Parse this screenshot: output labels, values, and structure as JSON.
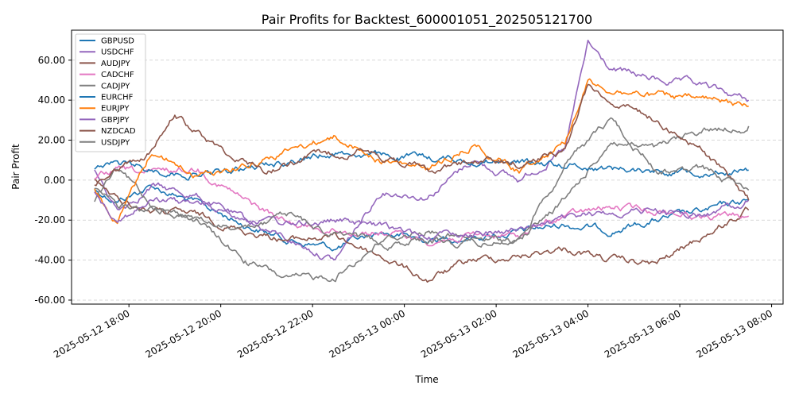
{
  "chart_data": {
    "type": "line",
    "title": "Pair Profits for Backtest_600001051_202505121700",
    "xlabel": "Time",
    "ylabel": "Pair Profit",
    "x_range": [
      "2025-05-12 16:45",
      "2025-05-13 08:15"
    ],
    "ylim": [
      -62,
      75
    ],
    "y_ticks": [
      -60,
      -40,
      -20,
      0,
      20,
      40,
      60
    ],
    "y_tick_labels": [
      "-60.00",
      "-40.00",
      "-20.00",
      "0.00",
      "20.00",
      "40.00",
      "60.00"
    ],
    "x_ticks": [
      "2025-05-12 18:00",
      "2025-05-12 20:00",
      "2025-05-12 22:00",
      "2025-05-13 00:00",
      "2025-05-13 02:00",
      "2025-05-13 04:00",
      "2025-05-13 06:00",
      "2025-05-13 08:00"
    ],
    "x_tick_labels": [
      "2025-05-12 18:00",
      "2025-05-12 20:00",
      "2025-05-12 22:00",
      "2025-05-13 00:00",
      "2025-05-13 02:00",
      "2025-05-13 04:00",
      "2025-05-13 06:00",
      "2025-05-13 08:00"
    ],
    "grid": "y-dashed",
    "legend_position": "top-left",
    "series": [
      {
        "name": "GBPUSD",
        "color": "#1f77b4",
        "x": [
          "2025-05-12 17:15",
          "2025-05-12 17:45",
          "2025-05-12 18:30",
          "2025-05-12 19:30",
          "2025-05-12 20:30",
          "2025-05-12 21:30",
          "2025-05-12 22:30",
          "2025-05-12 23:30",
          "2025-05-13 00:30",
          "2025-05-13 01:30",
          "2025-05-13 02:30",
          "2025-05-13 03:30",
          "2025-05-13 04:30",
          "2025-05-13 05:30",
          "2025-05-13 06:30",
          "2025-05-13 07:30"
        ],
        "values": [
          -5,
          -10,
          -3,
          -12,
          -22,
          -30,
          -34,
          -26,
          -30,
          -28,
          -26,
          -22,
          -25,
          -20,
          -16,
          -10
        ]
      },
      {
        "name": "USDCHF",
        "color": "#9467bd",
        "x": [
          "2025-05-12 17:15",
          "2025-05-12 17:45",
          "2025-05-12 18:30",
          "2025-05-12 19:30",
          "2025-05-12 20:30",
          "2025-05-12 21:30",
          "2025-05-12 22:30",
          "2025-05-12 23:30",
          "2025-05-13 00:30",
          "2025-05-13 01:30",
          "2025-05-13 02:30",
          "2025-05-13 03:30",
          "2025-05-13 04:00",
          "2025-05-13 04:30",
          "2025-05-13 05:30",
          "2025-05-13 06:30",
          "2025-05-13 07:30"
        ],
        "values": [
          5,
          -15,
          -3,
          -8,
          -20,
          -30,
          -40,
          -5,
          -8,
          10,
          0,
          15,
          68,
          55,
          50,
          47,
          40
        ]
      },
      {
        "name": "AUDJPY",
        "color": "#8c564b",
        "x": [
          "2025-05-12 17:15",
          "2025-05-12 17:45",
          "2025-05-12 18:30",
          "2025-05-12 19:30",
          "2025-05-12 20:30",
          "2025-05-12 21:30",
          "2025-05-12 22:30",
          "2025-05-12 23:30",
          "2025-05-13 00:30",
          "2025-05-13 01:30",
          "2025-05-13 02:30",
          "2025-05-13 03:30",
          "2025-05-13 04:30",
          "2025-05-13 05:30",
          "2025-05-13 06:30",
          "2025-05-13 07:30"
        ],
        "values": [
          0,
          -10,
          -15,
          -18,
          -25,
          -30,
          -28,
          -38,
          -50,
          -40,
          -38,
          -34,
          -40,
          -42,
          -28,
          -15
        ]
      },
      {
        "name": "CADCHF",
        "color": "#e377c2",
        "x": [
          "2025-05-12 17:15",
          "2025-05-12 17:45",
          "2025-05-12 18:30",
          "2025-05-12 19:30",
          "2025-05-12 20:30",
          "2025-05-12 21:30",
          "2025-05-12 22:30",
          "2025-05-12 23:30",
          "2025-05-13 00:30",
          "2025-05-13 01:30",
          "2025-05-13 02:30",
          "2025-05-13 03:30",
          "2025-05-13 04:30",
          "2025-05-13 05:30",
          "2025-05-13 06:30",
          "2025-05-13 07:30"
        ],
        "values": [
          0,
          5,
          3,
          6,
          -10,
          -22,
          -25,
          -26,
          -30,
          -28,
          -28,
          -18,
          -14,
          -15,
          -18,
          -18
        ]
      },
      {
        "name": "CADJPY",
        "color": "#7f7f7f",
        "x": [
          "2025-05-12 17:15",
          "2025-05-12 17:45",
          "2025-05-12 18:30",
          "2025-05-12 19:30",
          "2025-05-12 20:30",
          "2025-05-12 21:30",
          "2025-05-12 22:30",
          "2025-05-12 23:30",
          "2025-05-13 00:30",
          "2025-05-13 01:30",
          "2025-05-13 02:30",
          "2025-05-13 03:30",
          "2025-05-13 04:30",
          "2025-05-13 05:30",
          "2025-05-13 06:30",
          "2025-05-13 07:30"
        ],
        "values": [
          -10,
          5,
          -12,
          -20,
          -40,
          -50,
          -48,
          -30,
          -25,
          -30,
          -30,
          -10,
          20,
          15,
          25,
          27
        ]
      },
      {
        "name": "EURCHF",
        "color": "#1f77b4",
        "x": [
          "2025-05-12 17:15",
          "2025-05-12 17:45",
          "2025-05-12 18:30",
          "2025-05-12 19:30",
          "2025-05-12 20:30",
          "2025-05-12 21:30",
          "2025-05-12 22:30",
          "2025-05-12 23:30",
          "2025-05-13 00:30",
          "2025-05-13 01:30",
          "2025-05-13 02:30",
          "2025-05-13 03:30",
          "2025-05-13 04:30",
          "2025-05-13 05:30",
          "2025-05-13 06:30",
          "2025-05-13 07:30"
        ],
        "values": [
          5,
          8,
          5,
          3,
          5,
          10,
          14,
          12,
          11,
          10,
          9,
          8,
          6,
          5,
          5,
          5
        ]
      },
      {
        "name": "EURJPY",
        "color": "#ff7f0e",
        "x": [
          "2025-05-12 17:15",
          "2025-05-12 17:45",
          "2025-05-12 18:30",
          "2025-05-12 19:30",
          "2025-05-12 20:30",
          "2025-05-12 21:30",
          "2025-05-12 22:30",
          "2025-05-12 23:30",
          "2025-05-13 00:30",
          "2025-05-13 01:30",
          "2025-05-13 02:30",
          "2025-05-13 03:30",
          "2025-05-13 04:00",
          "2025-05-13 04:30",
          "2025-05-13 05:30",
          "2025-05-13 06:30",
          "2025-05-13 07:30"
        ],
        "values": [
          -5,
          -22,
          15,
          2,
          8,
          15,
          22,
          10,
          5,
          18,
          5,
          20,
          50,
          45,
          42,
          40,
          37
        ]
      },
      {
        "name": "GBPJPY",
        "color": "#9467bd",
        "x": [
          "2025-05-12 17:15",
          "2025-05-12 17:45",
          "2025-05-12 18:30",
          "2025-05-12 19:30",
          "2025-05-12 20:30",
          "2025-05-12 21:30",
          "2025-05-12 22:30",
          "2025-05-12 23:30",
          "2025-05-13 00:30",
          "2025-05-13 01:30",
          "2025-05-13 02:30",
          "2025-05-13 03:30",
          "2025-05-13 04:30",
          "2025-05-13 05:30",
          "2025-05-13 06:30",
          "2025-05-13 07:30"
        ],
        "values": [
          -5,
          -20,
          -10,
          -12,
          -18,
          -22,
          -20,
          -24,
          -28,
          -26,
          -25,
          -20,
          -16,
          -15,
          -18,
          -10
        ]
      },
      {
        "name": "NZDCAD",
        "color": "#8c564b",
        "x": [
          "2025-05-12 17:15",
          "2025-05-12 17:45",
          "2025-05-12 18:30",
          "2025-05-12 19:00",
          "2025-05-12 20:00",
          "2025-05-12 21:00",
          "2025-05-12 22:00",
          "2025-05-12 23:00",
          "2025-05-13 00:30",
          "2025-05-13 01:30",
          "2025-05-13 02:30",
          "2025-05-13 03:30",
          "2025-05-13 04:00",
          "2025-05-13 04:30",
          "2025-05-13 05:30",
          "2025-05-13 06:30",
          "2025-05-13 07:30"
        ],
        "values": [
          -2,
          5,
          15,
          32,
          15,
          5,
          12,
          15,
          5,
          10,
          8,
          15,
          48,
          40,
          30,
          15,
          -10
        ]
      },
      {
        "name": "USDJPY",
        "color": "#7f7f7f",
        "x": [
          "2025-05-12 17:15",
          "2025-05-12 17:45",
          "2025-05-12 18:30",
          "2025-05-12 19:30",
          "2025-05-12 20:30",
          "2025-05-12 21:30",
          "2025-05-12 22:30",
          "2025-05-12 23:30",
          "2025-05-13 00:30",
          "2025-05-13 01:30",
          "2025-05-13 02:30",
          "2025-05-13 03:30",
          "2025-05-13 04:30",
          "2025-05-13 05:30",
          "2025-05-13 06:30",
          "2025-05-13 07:30"
        ],
        "values": [
          -3,
          -12,
          -15,
          -20,
          -25,
          -18,
          -28,
          -32,
          -30,
          -32,
          -30,
          8,
          30,
          5,
          5,
          -5
        ]
      }
    ]
  }
}
